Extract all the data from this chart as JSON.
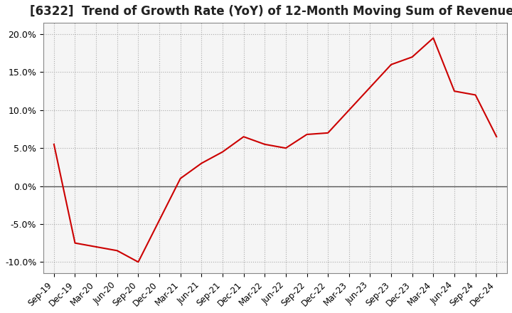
{
  "title": "[6322]  Trend of Growth Rate (YoY) of 12-Month Moving Sum of Revenues",
  "title_fontsize": 12,
  "line_color": "#cc0000",
  "background_color": "#ffffff",
  "plot_bg_color": "#f5f5f5",
  "grid_color": "#aaaaaa",
  "zero_line_color": "#555555",
  "ylim": [
    -0.115,
    0.215
  ],
  "yticks": [
    -0.1,
    -0.05,
    0.0,
    0.05,
    0.1,
    0.15,
    0.2
  ],
  "ytick_labels": [
    "-10.0%",
    "-5.0%",
    "0.0%",
    "5.0%",
    "10.0%",
    "15.0%",
    "20.0%"
  ],
  "x_labels": [
    "Sep-19",
    "Dec-19",
    "Mar-20",
    "Jun-20",
    "Sep-20",
    "Dec-20",
    "Mar-21",
    "Jun-21",
    "Sep-21",
    "Dec-21",
    "Mar-22",
    "Jun-22",
    "Sep-22",
    "Dec-22",
    "Mar-23",
    "Jun-23",
    "Sep-23",
    "Dec-23",
    "Mar-24",
    "Jun-24",
    "Sep-24",
    "Dec-24"
  ],
  "values": [
    0.055,
    -0.075,
    -0.08,
    -0.085,
    -0.1,
    -0.045,
    0.01,
    0.03,
    0.045,
    0.065,
    0.055,
    0.05,
    0.068,
    0.07,
    0.1,
    0.13,
    0.16,
    0.17,
    0.195,
    0.125,
    0.12,
    0.065
  ]
}
